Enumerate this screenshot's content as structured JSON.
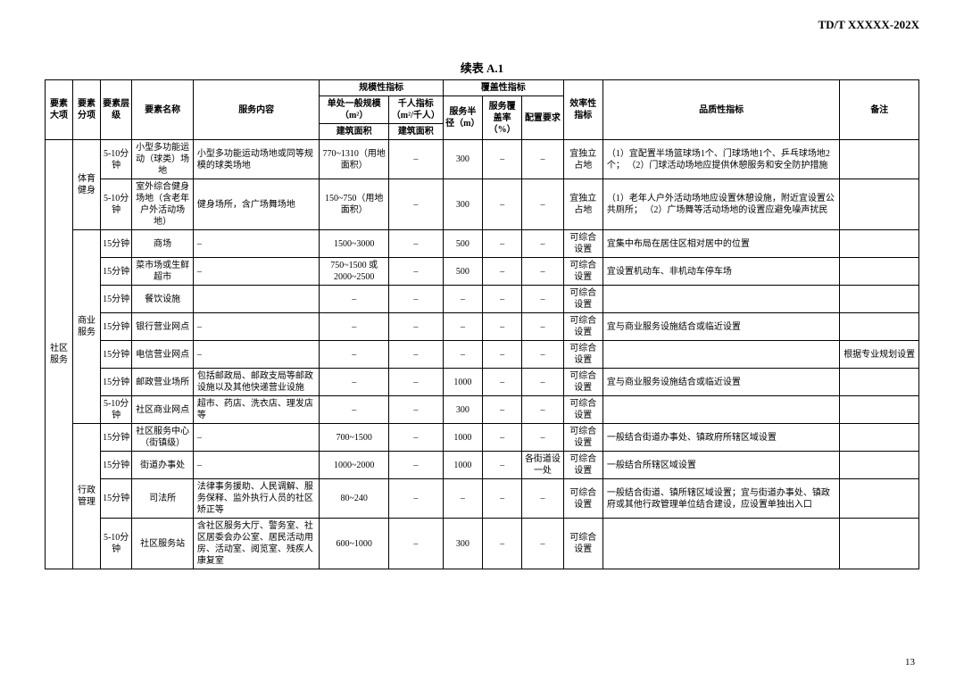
{
  "docId": "TD/T  XXXXX-202X",
  "tableTitle": "续表 A.1",
  "pageNum": "13",
  "headers": {
    "c1": "要素大项",
    "c2": "要素分项",
    "c3": "要素层级",
    "c4": "要素名称",
    "c5": "服务内容",
    "g1": "规模性指标",
    "c6a": "单处一般规模（m²）",
    "c6b": "建筑面积",
    "c7a": "千人指标（m²/千人）",
    "c7b": "建筑面积",
    "g2": "覆盖性指标",
    "c8": "服务半径（m）",
    "c9": "服务覆盖率（%）",
    "c10": "配置要求",
    "c11": "效率性指标",
    "c12": "品质性指标",
    "c13": "备注"
  },
  "majorCat": "社区服务",
  "groups": [
    {
      "name": "体育健身",
      "rows": [
        {
          "lvl": "5-10分钟",
          "elem": "小型多功能运动（球类）场地",
          "svc": "小型多功能运动场地或同等规模的球类场地",
          "scale": "770~1310（用地面积）",
          "qk": "–",
          "rad": "300",
          "cov": "–",
          "req": "–",
          "eff": "宜独立占地",
          "qual": "（1）宜配置半场篮球场1个、门球场地1个、乒乓球场地2个；\n（2）门球活动场地应提供休憩服务和安全防护措施",
          "note": ""
        },
        {
          "lvl": "5-10分钟",
          "elem": "室外综合健身场地（含老年户外活动场地）",
          "svc": "健身场所，含广场舞场地",
          "scale": "150~750（用地面积）",
          "qk": "–",
          "rad": "300",
          "cov": "–",
          "req": "–",
          "eff": "宜独立占地",
          "qual": "（1）老年人户外活动场地应设置休憩设施，附近宜设置公共厕所；\n（2）广场舞等活动场地的设置应避免噪声扰民",
          "note": ""
        }
      ]
    },
    {
      "name": "商业服务",
      "rows": [
        {
          "lvl": "15分钟",
          "elem": "商场",
          "svc": "–",
          "scale": "1500~3000",
          "qk": "–",
          "rad": "500",
          "cov": "–",
          "req": "–",
          "eff": "可综合设置",
          "qual": "宜集中布局在居住区相对居中的位置",
          "note": ""
        },
        {
          "lvl": "15分钟",
          "elem": "菜市场或生鲜超市",
          "svc": "–",
          "scale": "750~1500 或 2000~2500",
          "qk": "–",
          "rad": "500",
          "cov": "–",
          "req": "–",
          "eff": "可综合设置",
          "qual": "宜设置机动车、非机动车停车场",
          "note": ""
        },
        {
          "lvl": "15分钟",
          "elem": "餐饮设施",
          "svc": "",
          "scale": "–",
          "qk": "–",
          "rad": "–",
          "cov": "–",
          "req": "–",
          "eff": "可综合设置",
          "qual": "",
          "note": ""
        },
        {
          "lvl": "15分钟",
          "elem": "银行营业网点",
          "svc": "–",
          "scale": "–",
          "qk": "–",
          "rad": "–",
          "cov": "–",
          "req": "–",
          "eff": "可综合设置",
          "qual": "宜与商业服务设施结合或临近设置",
          "note": ""
        },
        {
          "lvl": "15分钟",
          "elem": "电信营业网点",
          "svc": "–",
          "scale": "–",
          "qk": "–",
          "rad": "–",
          "cov": "–",
          "req": "–",
          "eff": "可综合设置",
          "qual": "",
          "note": "根据专业规划设置"
        },
        {
          "lvl": "15分钟",
          "elem": "邮政营业场所",
          "svc": "包括邮政局、邮政支局等邮政设施以及其他快递营业设施",
          "scale": "–",
          "qk": "–",
          "rad": "1000",
          "cov": "–",
          "req": "–",
          "eff": "可综合设置",
          "qual": "宜与商业服务设施结合或临近设置",
          "note": ""
        },
        {
          "lvl": "5-10分钟",
          "elem": "社区商业网点",
          "svc": "超市、药店、洗衣店、理发店等",
          "scale": "–",
          "qk": "–",
          "rad": "300",
          "cov": "–",
          "req": "–",
          "eff": "可综合设置",
          "qual": "",
          "note": ""
        }
      ]
    },
    {
      "name": "行政管理",
      "rows": [
        {
          "lvl": "15分钟",
          "elem": "社区服务中心（街镇级）",
          "svc": "–",
          "scale": "700~1500",
          "qk": "–",
          "rad": "1000",
          "cov": "–",
          "req": "–",
          "eff": "可综合设置",
          "qual": "一般结合街道办事处、镇政府所辖区域设置",
          "note": ""
        },
        {
          "lvl": "15分钟",
          "elem": "街道办事处",
          "svc": "–",
          "scale": "1000~2000",
          "qk": "–",
          "rad": "1000",
          "cov": "–",
          "req": "各街道设一处",
          "eff": "可综合设置",
          "qual": "一般结合所辖区域设置",
          "note": ""
        },
        {
          "lvl": "15分钟",
          "elem": "司法所",
          "svc": "法律事务援助、人民调解、服务保释、监外执行人员的社区矫正等",
          "scale": "80~240",
          "qk": "–",
          "rad": "–",
          "cov": "–",
          "req": "–",
          "eff": "可综合设置",
          "qual": "一般结合街道、镇所辖区域设置；宜与街道办事处、镇政府或其他行政管理单位结合建设，应设置单独出入口",
          "note": ""
        },
        {
          "lvl": "5-10分钟",
          "elem": "社区服务站",
          "svc": "含社区服务大厅、警务室、社区居委会办公室、居民活动用房、活动室、阅览室、残疾人康复室",
          "scale": "600~1000",
          "qk": "–",
          "rad": "300",
          "cov": "–",
          "req": "–",
          "eff": "可综合设置",
          "qual": "",
          "note": ""
        }
      ]
    }
  ]
}
